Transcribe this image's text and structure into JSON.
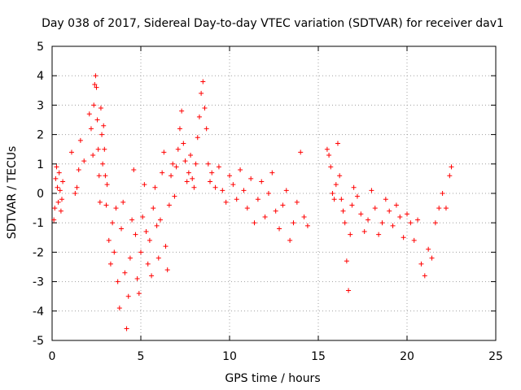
{
  "chart_data": {
    "type": "scatter",
    "title": "Day 038 of 2017, Sidereal Day-to-day VTEC variation (SDTVAR) for receiver dav1",
    "xlabel": "GPS time / hours",
    "ylabel": "SDTVAR / TECUs",
    "xlim": [
      0,
      25
    ],
    "ylim": [
      -5,
      5
    ],
    "xticks": [
      0,
      5,
      10,
      15,
      20,
      25
    ],
    "yticks": [
      -5,
      -4,
      -3,
      -2,
      -1,
      0,
      1,
      2,
      3,
      4,
      5
    ],
    "grid": true,
    "marker": "+",
    "color": "#ff0000",
    "series": [
      {
        "name": "SDTVAR",
        "x": [
          0.1,
          0.15,
          0.2,
          0.25,
          0.3,
          0.35,
          0.4,
          0.45,
          0.5,
          0.55,
          0.6,
          1.1,
          1.3,
          1.4,
          1.5,
          1.6,
          1.8,
          2.1,
          2.2,
          2.3,
          2.35,
          2.4,
          2.45,
          2.5,
          2.55,
          2.6,
          2.65,
          2.7,
          2.75,
          2.8,
          2.85,
          2.9,
          2.95,
          3.0,
          3.05,
          3.1,
          3.2,
          3.3,
          3.4,
          3.5,
          3.6,
          3.7,
          3.8,
          3.9,
          4.0,
          4.1,
          4.2,
          4.3,
          4.4,
          4.5,
          4.6,
          4.7,
          4.8,
          4.9,
          5.0,
          5.1,
          5.2,
          5.3,
          5.4,
          5.5,
          5.6,
          5.7,
          5.8,
          5.9,
          6.0,
          6.1,
          6.2,
          6.3,
          6.4,
          6.5,
          6.6,
          6.7,
          6.8,
          6.9,
          7.0,
          7.1,
          7.2,
          7.3,
          7.4,
          7.5,
          7.6,
          7.7,
          7.8,
          7.9,
          8.0,
          8.1,
          8.2,
          8.3,
          8.4,
          8.5,
          8.6,
          8.7,
          8.8,
          8.9,
          9.0,
          9.2,
          9.4,
          9.6,
          9.8,
          10.0,
          10.2,
          10.4,
          10.6,
          10.8,
          11.0,
          11.2,
          11.4,
          11.6,
          11.8,
          12.0,
          12.2,
          12.4,
          12.6,
          12.8,
          13.0,
          13.2,
          13.4,
          13.6,
          13.8,
          14.0,
          14.2,
          14.4,
          15.5,
          15.6,
          15.7,
          15.8,
          15.9,
          16.0,
          16.1,
          16.2,
          16.3,
          16.4,
          16.5,
          16.6,
          16.7,
          16.8,
          16.9,
          17.0,
          17.2,
          17.4,
          17.6,
          17.8,
          18.0,
          18.2,
          18.4,
          18.6,
          18.8,
          19.0,
          19.2,
          19.4,
          19.6,
          19.8,
          20.0,
          20.2,
          20.4,
          20.6,
          20.8,
          21.0,
          21.2,
          21.4,
          21.6,
          21.8,
          22.0,
          22.2,
          22.4,
          22.5
        ],
        "y": [
          -0.9,
          -0.5,
          0.5,
          0.9,
          0.2,
          -0.3,
          0.7,
          0.1,
          -0.6,
          -0.2,
          0.4,
          1.4,
          0.0,
          0.2,
          0.8,
          1.8,
          1.1,
          2.7,
          2.2,
          1.3,
          3.0,
          3.7,
          4.0,
          3.6,
          2.5,
          1.5,
          0.6,
          -0.3,
          2.9,
          2.0,
          1.0,
          2.3,
          1.5,
          0.6,
          -0.4,
          0.3,
          -1.6,
          -2.4,
          -1.0,
          -2.0,
          -0.5,
          -3.0,
          -3.9,
          -1.2,
          -0.3,
          -2.7,
          -4.6,
          -3.5,
          -2.2,
          -0.9,
          0.8,
          -1.4,
          -2.9,
          -3.4,
          -2.0,
          -0.8,
          0.3,
          -1.3,
          -2.4,
          -1.6,
          -2.8,
          -0.5,
          0.2,
          -1.1,
          -2.2,
          -0.9,
          0.7,
          1.4,
          -1.8,
          -2.6,
          -0.4,
          0.6,
          1.0,
          -0.1,
          0.9,
          1.5,
          2.2,
          2.8,
          1.7,
          1.1,
          0.4,
          0.7,
          1.3,
          0.5,
          0.2,
          1.0,
          1.9,
          2.6,
          3.4,
          3.8,
          2.9,
          2.2,
          1.0,
          0.4,
          0.7,
          0.2,
          0.9,
          0.1,
          -0.3,
          0.6,
          0.3,
          -0.2,
          0.8,
          0.1,
          -0.5,
          0.5,
          -1.0,
          -0.2,
          0.4,
          -0.8,
          0.0,
          0.7,
          -0.6,
          -1.2,
          -0.4,
          0.1,
          -1.6,
          -1.0,
          -0.3,
          1.4,
          -0.8,
          -1.1,
          1.5,
          1.3,
          0.9,
          0.0,
          -0.2,
          0.3,
          1.7,
          0.6,
          -0.2,
          -0.6,
          -1.0,
          -2.3,
          -3.3,
          -1.4,
          -0.4,
          0.2,
          -0.1,
          -0.7,
          -1.3,
          -0.9,
          0.1,
          -0.5,
          -1.4,
          -1.0,
          -0.2,
          -0.6,
          -1.1,
          -0.4,
          -0.8,
          -1.5,
          -0.7,
          -1.0,
          -1.6,
          -0.9,
          -2.4,
          -2.8,
          -1.9,
          -2.2,
          -1.0,
          -0.5,
          0.0,
          -0.5,
          0.6,
          0.9
        ]
      }
    ]
  }
}
